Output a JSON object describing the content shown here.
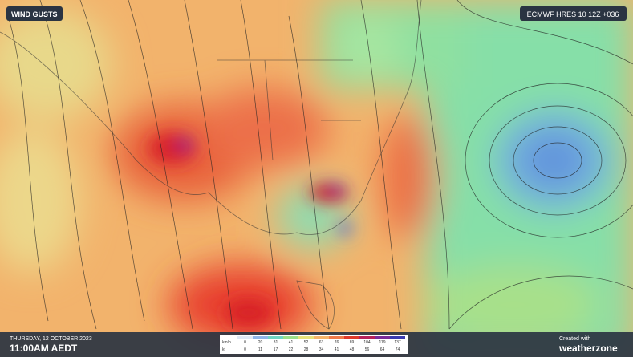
{
  "header": {
    "title": "WIND GUSTS",
    "model": "ECMWF HRES 10 12Z +036"
  },
  "footer": {
    "date": "THURSDAY, 12 OCTOBER 2023",
    "time": "11:00AM AEDT",
    "credit": "Created with",
    "brand": "weatherzone"
  },
  "legend": {
    "rows": [
      {
        "unit": "km/h",
        "values": [
          0,
          20,
          31,
          41,
          52,
          63,
          76,
          89,
          104,
          119,
          137
        ]
      },
      {
        "unit": "kt",
        "values": [
          0,
          11,
          17,
          22,
          28,
          34,
          41,
          48,
          56,
          64,
          74
        ]
      }
    ],
    "colors": [
      "#dfe8f5",
      "#8fb5e8",
      "#6fd6c4",
      "#9be08a",
      "#e8e27a",
      "#f5b46a",
      "#f07a4a",
      "#e03a2a",
      "#b8205a",
      "#7a2a9a",
      "#3a3ab0"
    ]
  }
}
